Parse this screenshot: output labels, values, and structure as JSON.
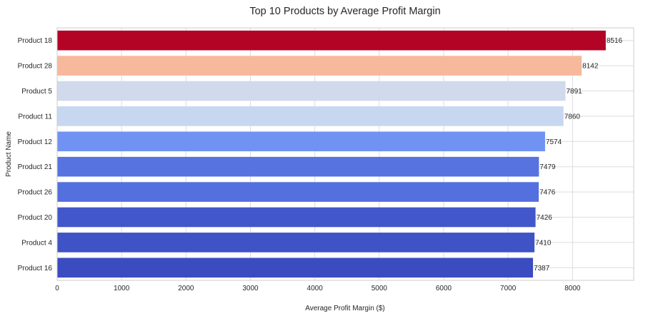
{
  "chart_data": {
    "type": "bar",
    "orientation": "horizontal",
    "title": "Top 10 Products by Average Profit Margin",
    "xlabel": "Average Profit Margin ($)",
    "ylabel": "Product Name",
    "xlim": [
      0,
      8950
    ],
    "x_ticks": [
      0,
      1000,
      2000,
      3000,
      4000,
      5000,
      6000,
      7000,
      8000
    ],
    "grid": true,
    "categories": [
      "Product 18",
      "Product 28",
      "Product 5",
      "Product 11",
      "Product 12",
      "Product 21",
      "Product 26",
      "Product 20",
      "Product 4",
      "Product 16"
    ],
    "values": [
      8516,
      8142,
      7891,
      7860,
      7574,
      7479,
      7476,
      7426,
      7410,
      7387
    ],
    "value_labels": [
      "8516",
      "8142",
      "7891",
      "7860",
      "7574",
      "7479",
      "7476",
      "7426",
      "7410",
      "7387"
    ],
    "colors": [
      "#b40426",
      "#f7b89c",
      "#d0daec",
      "#c8d7f0",
      "#7093f3",
      "#5673e0",
      "#5470de",
      "#4257c9",
      "#3f53c6",
      "#3b4cc0"
    ]
  }
}
